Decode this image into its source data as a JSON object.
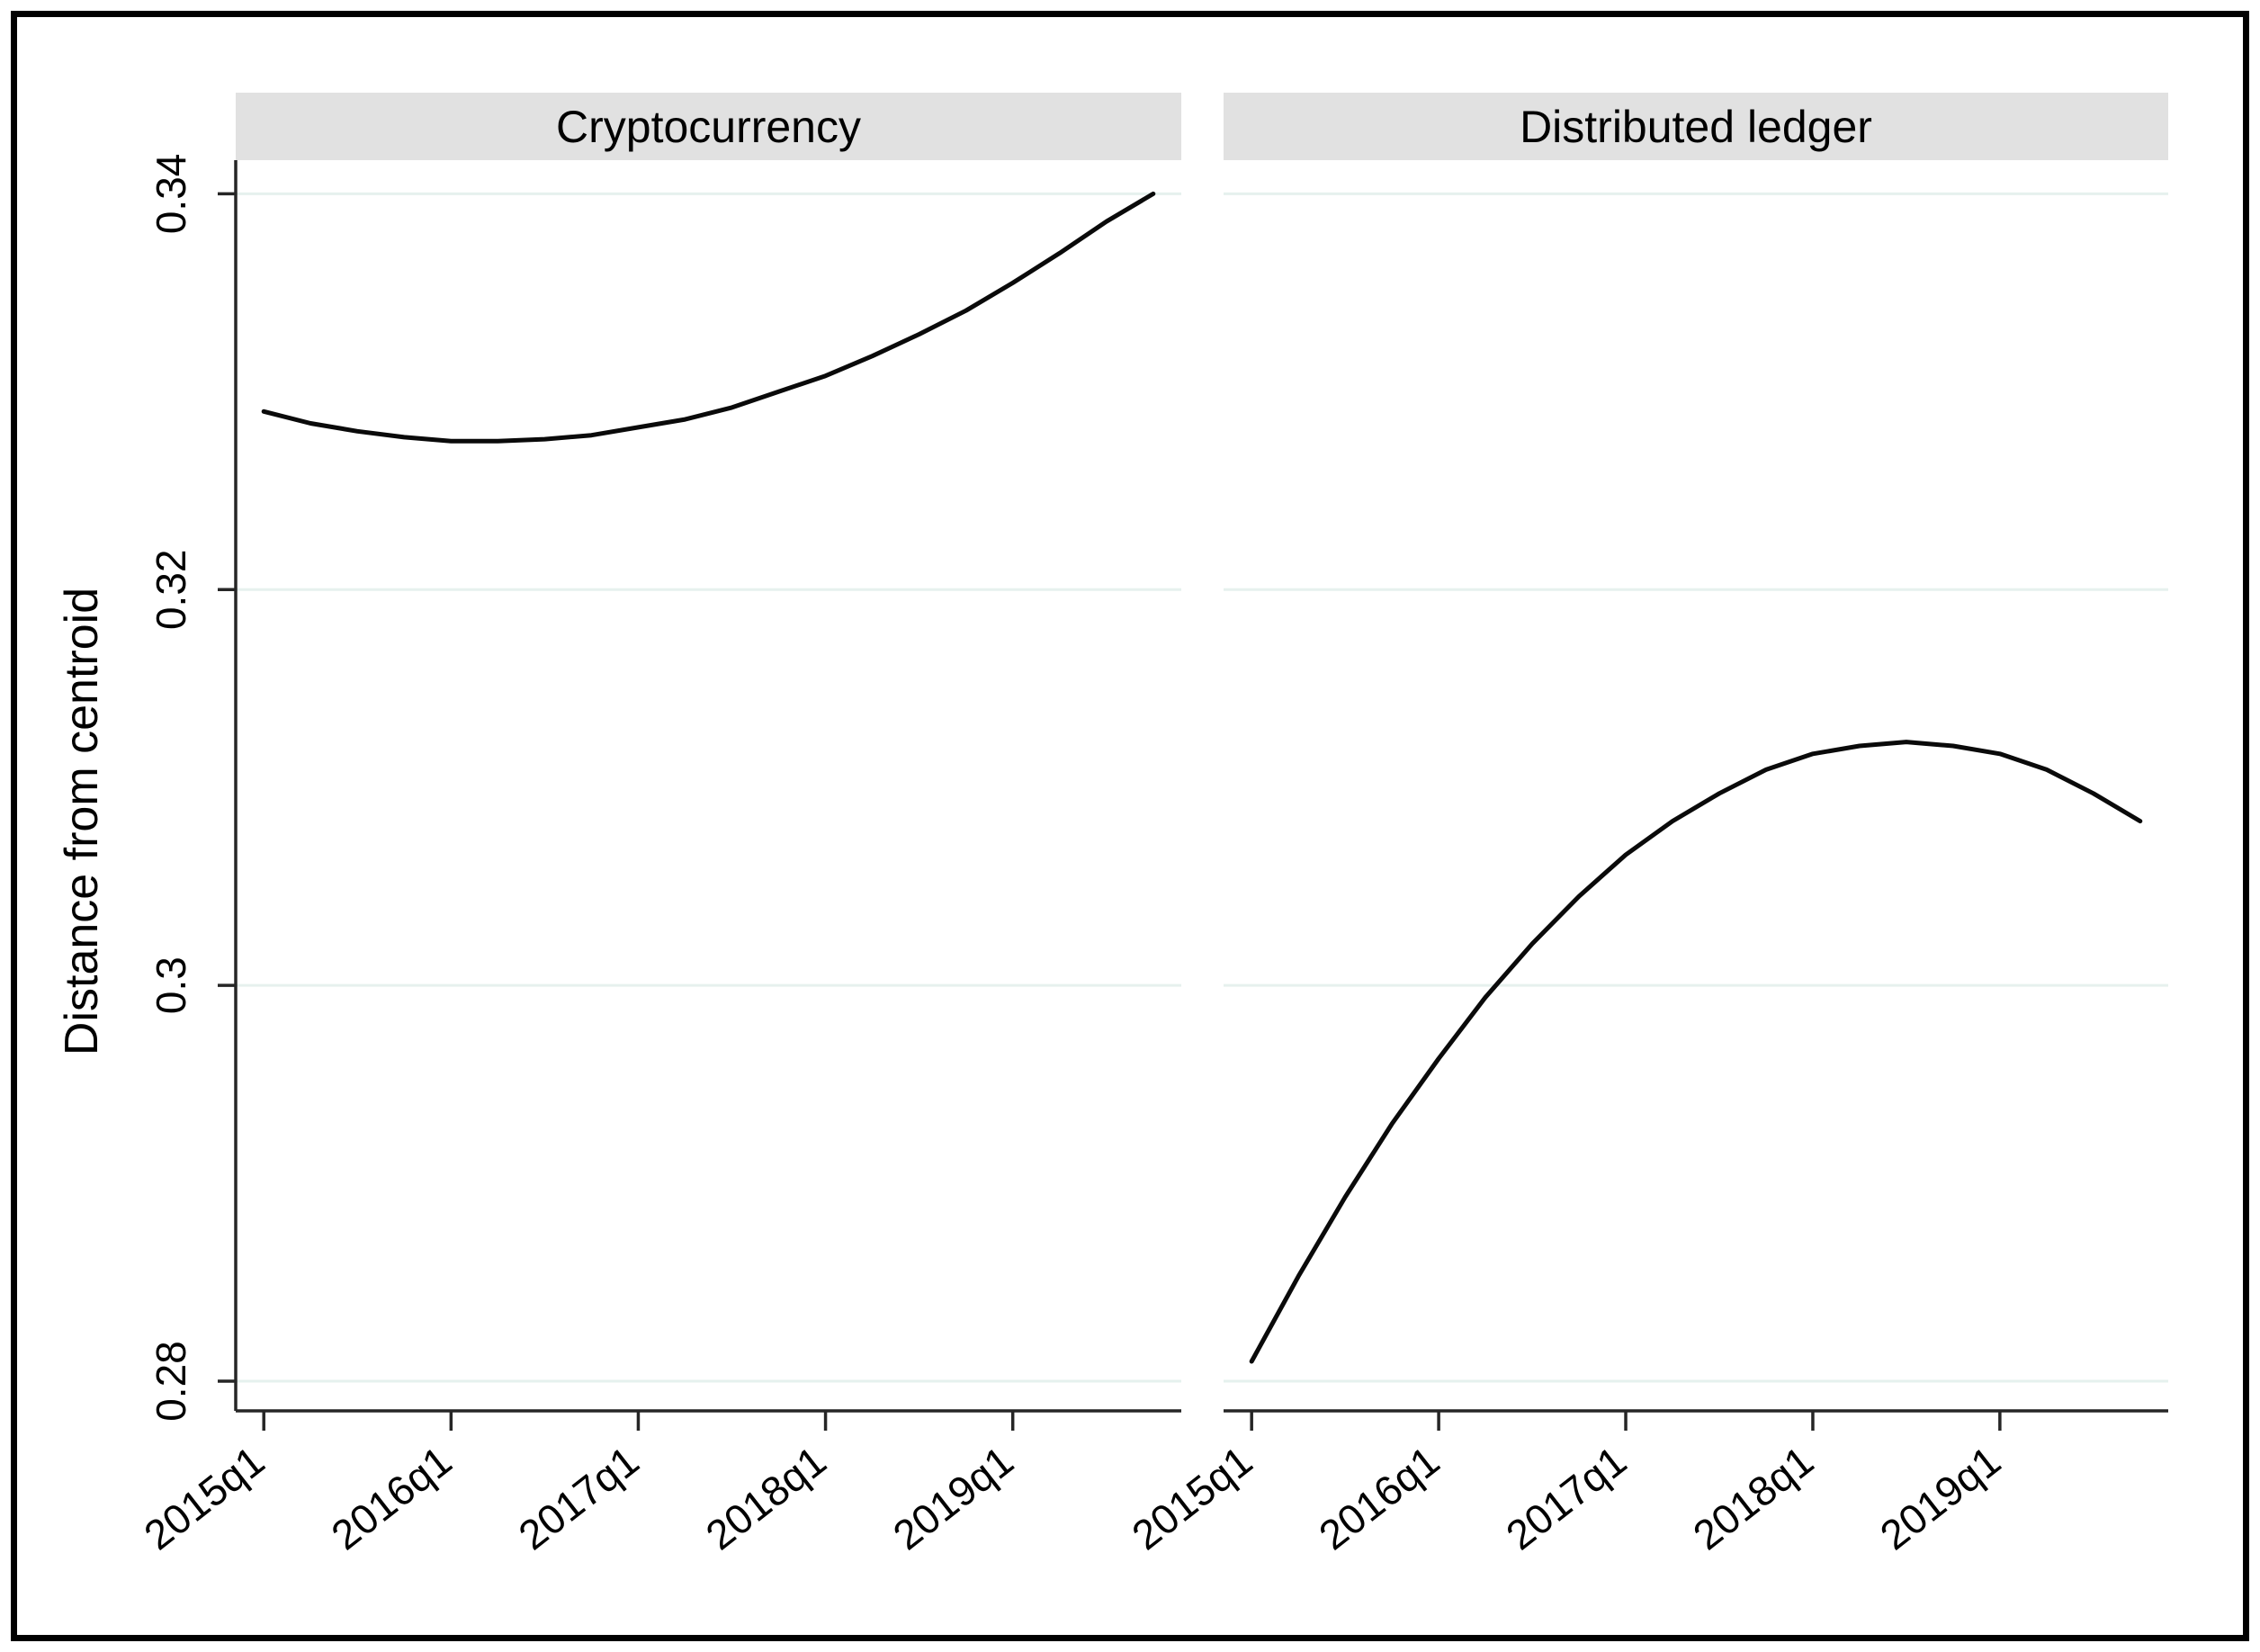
{
  "figure": {
    "background": "#ffffff",
    "frame_color": "#000000"
  },
  "colors": {
    "grid": "#e6f1ee",
    "header_bg": "#e1e1e1",
    "axis": "#262626",
    "line": "#0a0a0a",
    "text": "#000000"
  },
  "chart_data": {
    "type": "line",
    "title": "",
    "xlabel": "",
    "ylabel": "Distance from centroid",
    "grid": true,
    "legend": "none",
    "xlim": [
      2014.85,
      2019.9
    ],
    "ylim": [
      0.2785,
      0.3417
    ],
    "x_start_year": 2015.0,
    "x_step_years": 0.25,
    "x_quarters": [
      "2015q1",
      "2015q2",
      "2015q3",
      "2015q4",
      "2016q1",
      "2016q2",
      "2016q3",
      "2016q4",
      "2017q1",
      "2017q2",
      "2017q3",
      "2017q4",
      "2018q1",
      "2018q2",
      "2018q3",
      "2018q4",
      "2019q1",
      "2019q2",
      "2019q3",
      "2019q4"
    ],
    "x_ticks": [
      {
        "year": 2015,
        "label": "2015q1"
      },
      {
        "year": 2016,
        "label": "2016q1"
      },
      {
        "year": 2017,
        "label": "2017q1"
      },
      {
        "year": 2018,
        "label": "2018q1"
      },
      {
        "year": 2019,
        "label": "2019q1"
      }
    ],
    "y_ticks": [
      {
        "value": 0.34,
        "label": "0.34"
      },
      {
        "value": 0.32,
        "label": "0.32"
      },
      {
        "value": 0.3,
        "label": "0.3"
      },
      {
        "value": 0.28,
        "label": "0.28"
      }
    ],
    "panels": [
      {
        "title": "Cryptocurrency",
        "series": {
          "name": "Cryptocurrency",
          "values": [
            0.329,
            0.3284,
            0.328,
            0.3277,
            0.3275,
            0.3275,
            0.3276,
            0.3278,
            0.3282,
            0.3286,
            0.3292,
            0.33,
            0.3308,
            0.3318,
            0.3329,
            0.3341,
            0.3355,
            0.337,
            0.3386,
            0.34
          ]
        }
      },
      {
        "title": "Distributed ledger",
        "series": {
          "name": "Distributed ledger",
          "values": [
            0.281,
            0.2853,
            0.2893,
            0.293,
            0.2963,
            0.2994,
            0.3021,
            0.3045,
            0.3066,
            0.3083,
            0.3097,
            0.3109,
            0.3117,
            0.3121,
            0.3123,
            0.3121,
            0.3117,
            0.3109,
            0.3097,
            0.3083
          ]
        }
      }
    ]
  }
}
